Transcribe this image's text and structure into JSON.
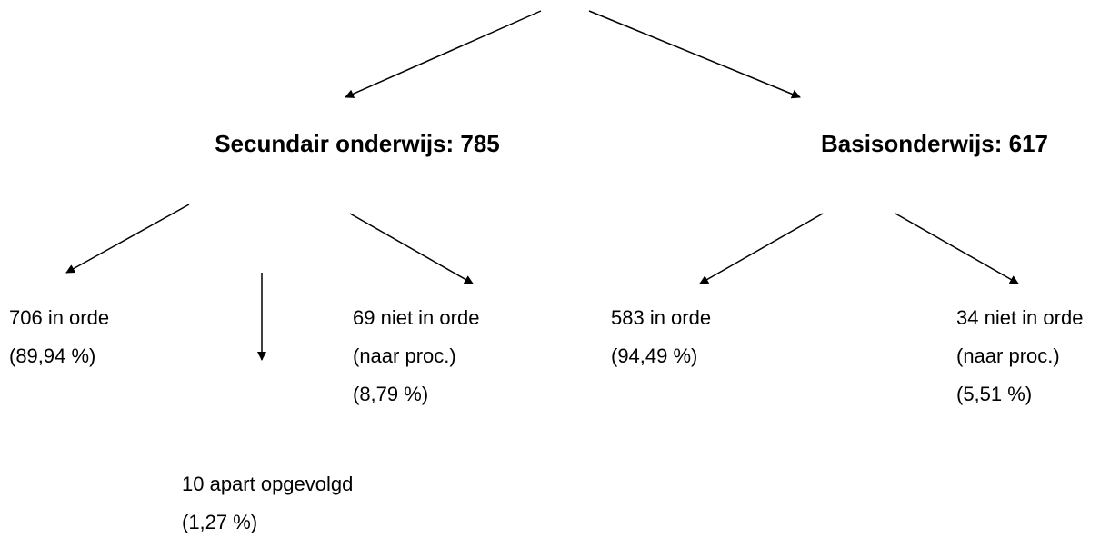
{
  "nodes": [
    {
      "lines": [
        "Secundair onderwijs: 785"
      ]
    },
    {
      "lines": [
        "Basisonderwijs: 617"
      ]
    },
    {
      "lines": [
        "706 in orde",
        "(89,94 %)"
      ]
    },
    {
      "lines": [
        "10 apart opgevolgd",
        "(1,27 %)"
      ]
    },
    {
      "lines": [
        "69 niet in orde",
        "(naar proc.)",
        "(8,79 %)"
      ]
    },
    {
      "lines": [
        "583 in orde",
        "(94,49 %)"
      ]
    },
    {
      "lines": [
        "34 niet in orde",
        "(naar proc.)",
        "(5,51 %)"
      ]
    }
  ]
}
